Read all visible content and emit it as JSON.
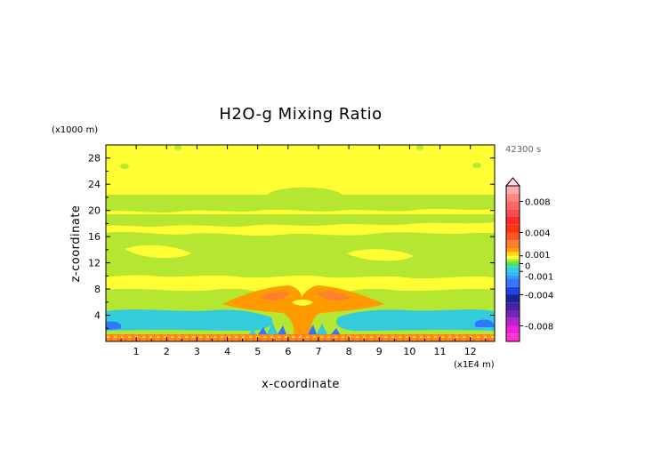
{
  "chart_data": {
    "type": "heatmap",
    "title": "H2O-g Mixing Ratio",
    "xlabel": "x-coordinate",
    "ylabel": "z-coordinate",
    "x_unit": "(x1E4 m)",
    "y_unit": "(x1000 m)",
    "time_label": "42300 s",
    "xlim": [
      0,
      12.8
    ],
    "ylim": [
      0,
      30
    ],
    "x_ticks": [
      "1",
      "2",
      "3",
      "4",
      "5",
      "6",
      "7",
      "8",
      "9",
      "10",
      "11",
      "12"
    ],
    "y_ticks": [
      "4",
      "8",
      "12",
      "16",
      "20",
      "24",
      "28"
    ],
    "colorbar": {
      "labels": [
        "0.008",
        "0.004",
        "0.001",
        "0",
        "-0.001",
        "-0.004",
        "-0.008"
      ],
      "values": [
        0.008,
        0.004,
        0.001,
        0,
        -0.001,
        -0.004,
        -0.008
      ],
      "range": [
        -0.01,
        0.01
      ]
    },
    "colors": {
      "background_yellow": "#ffff33",
      "band_green": "#b4e632",
      "light_green": "#66ee33",
      "orange": "#ffa000",
      "dark_orange": "#ff7f32",
      "red": "#ff4a3c",
      "cyan": "#33ccdd",
      "blue": "#3377ff",
      "navy": "#1a2299",
      "purple": "#7722bb",
      "magenta": "#ff33cc",
      "pink": "#ffaaaa"
    }
  }
}
